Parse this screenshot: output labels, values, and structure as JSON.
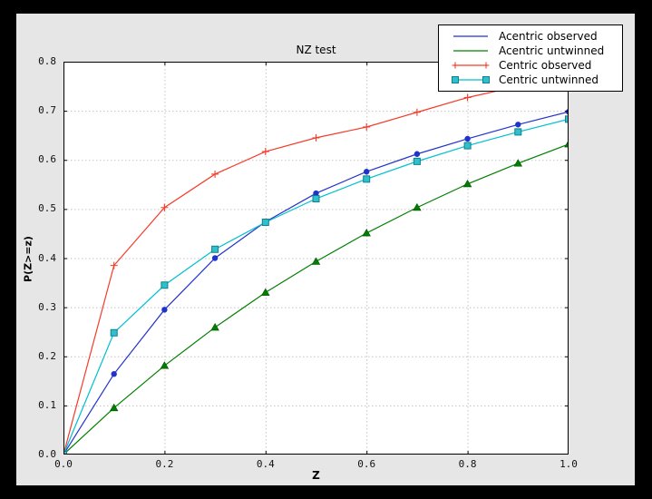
{
  "palette": {
    "window_background": "#000000",
    "figure_background": "#e6e6e6",
    "axes_background": "#ffffff",
    "axes_border": "#000000",
    "grid_color": "#c4c4c4",
    "tick_label_color": "#111111"
  },
  "chart_data": {
    "type": "line",
    "title": "NZ test",
    "xlabel": "Z",
    "ylabel": "P(Z>=z)",
    "xlim": [
      0.0,
      1.0
    ],
    "ylim": [
      0.0,
      0.8
    ],
    "xticks": [
      "0.0",
      "0.2",
      "0.4",
      "0.6",
      "0.8",
      "1.0"
    ],
    "yticks": [
      "0.0",
      "0.1",
      "0.2",
      "0.3",
      "0.4",
      "0.5",
      "0.6",
      "0.7",
      "0.8"
    ],
    "grid": true,
    "grid_style": "dashed",
    "legend_position": "upper right",
    "x": [
      0.0,
      0.1,
      0.2,
      0.3,
      0.4,
      0.5,
      0.6,
      0.7,
      0.8,
      0.9,
      1.0
    ],
    "series": [
      {
        "name": "Acentric observed",
        "color": "#2233cc",
        "marker": "circle",
        "legend_marker": "none",
        "values": [
          0.0,
          0.164,
          0.295,
          0.4,
          0.474,
          0.532,
          0.576,
          0.612,
          0.643,
          0.672,
          0.698
        ]
      },
      {
        "name": "Acentric untwinned",
        "color": "#008000",
        "marker": "triangle",
        "legend_marker": "none",
        "values": [
          0.0,
          0.095,
          0.181,
          0.259,
          0.33,
          0.393,
          0.451,
          0.503,
          0.551,
          0.593,
          0.632
        ]
      },
      {
        "name": "Centric observed",
        "color": "#f53b28",
        "marker": "plus",
        "legend_marker": "plus",
        "values": [
          0.0,
          0.385,
          0.503,
          0.571,
          0.617,
          0.645,
          0.667,
          0.697,
          0.727,
          0.75,
          0.77
        ]
      },
      {
        "name": "Centric untwinned",
        "color": "#00bfcf",
        "marker": "square",
        "marker_fill": "#2fc0cc",
        "marker_edge": "#117f8c",
        "legend_marker": "square",
        "values": [
          0.0,
          0.248,
          0.345,
          0.418,
          0.473,
          0.521,
          0.561,
          0.597,
          0.629,
          0.657,
          0.683
        ]
      }
    ]
  }
}
